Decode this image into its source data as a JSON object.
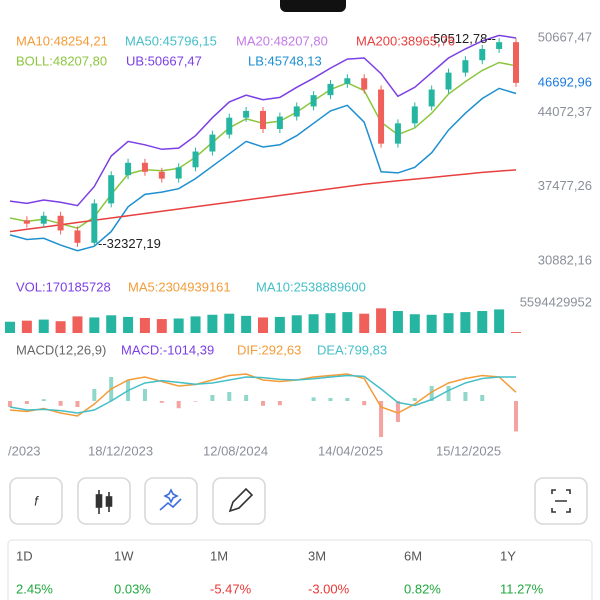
{
  "chart_data": [
    {
      "type": "candlestick-bands",
      "legend": [
        {
          "text": "MA10:48254,21",
          "color": "#f39c38"
        },
        {
          "text": "MA50:45796,15",
          "color": "#44bfc8"
        },
        {
          "text": "MA20:48207,80",
          "color": "#c47ae6"
        },
        {
          "text": "MA200:38965,76",
          "color": "#e8403e"
        },
        {
          "text": "BOLL:48207,80",
          "color": "#8cc63e"
        },
        {
          "text": "UB:50667,47",
          "color": "#7b3fe4"
        },
        {
          "text": "LB:45748,13",
          "color": "#1e8fd0"
        }
      ],
      "annotations": [
        {
          "text": "50512,78--",
          "value": 50512.78
        },
        {
          "text": "--32327,19",
          "value": 32327.19
        }
      ],
      "last_price": {
        "value": 46692.96,
        "label": "46692,96",
        "color": "#1e7be0"
      },
      "ylim": [
        30800,
        51380
      ],
      "yticks": [
        {
          "value": 50667.47,
          "label": "50667,47"
        },
        {
          "value": 44072.37,
          "label": "44072,37"
        },
        {
          "value": 37477.26,
          "label": "37477,26"
        },
        {
          "value": 30882.16,
          "label": "30882,16"
        }
      ],
      "up_color": "#26b5a0",
      "down_color": "#f0605a",
      "series": [
        {
          "color": "#26b5a0",
          "values": [
            34500,
            34200,
            34900,
            33600,
            32500,
            36000,
            38500,
            39600,
            38800,
            38200,
            39200,
            40600,
            42100,
            43600,
            44200,
            42600,
            43700,
            44600,
            45600,
            46600,
            47100,
            46100,
            41300,
            43100,
            44600,
            46100,
            47600,
            48700,
            49700,
            50300,
            46692.96
          ]
        },
        {
          "color": "#7b3fe4",
          "values": [
            36200,
            36000,
            36300,
            36100,
            35800,
            37500,
            40200,
            41500,
            41200,
            40800,
            40900,
            42000,
            43600,
            45000,
            45600,
            45200,
            45400,
            46300,
            47100,
            48000,
            48800,
            48900,
            47500,
            45500,
            46300,
            47600,
            48900,
            49700,
            50400,
            50900,
            50667.47
          ]
        },
        {
          "color": "#8cc63e",
          "values": [
            34700,
            34400,
            34600,
            34200,
            33800,
            34800,
            36800,
            38600,
            39000,
            38900,
            39100,
            40100,
            41400,
            42700,
            43500,
            43100,
            43300,
            44100,
            45100,
            46100,
            46700,
            46000,
            43200,
            42100,
            42700,
            44000,
            45700,
            46800,
            47800,
            48500,
            48207.8
          ]
        },
        {
          "color": "#1e8fd0",
          "values": [
            33200,
            32800,
            32900,
            32300,
            31800,
            32200,
            33500,
            35700,
            36800,
            37000,
            37300,
            38200,
            39300,
            40400,
            41500,
            41000,
            41200,
            42000,
            43100,
            44200,
            44700,
            43200,
            38800,
            38700,
            39200,
            40500,
            42500,
            44000,
            45300,
            46200,
            45748.13
          ]
        },
        {
          "color": "#e8403e",
          "values": [
            33500,
            33700,
            33900,
            34100,
            34300,
            34500,
            34700,
            34900,
            35100,
            35300,
            35500,
            35700,
            35900,
            36100,
            36300,
            36500,
            36700,
            36900,
            37100,
            37300,
            37500,
            37700,
            37850,
            38000,
            38150,
            38300,
            38450,
            38600,
            38750,
            38860,
            38965.76
          ]
        }
      ]
    },
    {
      "type": "volume",
      "legend": [
        {
          "text": "VOL:170185728",
          "color": "#7b3fe4"
        },
        {
          "text": "MA5:2304939161",
          "color": "#f39c38"
        },
        {
          "text": "MA10:2538889600",
          "color": "#44bfc8"
        }
      ],
      "ylim": [
        0,
        5594429952
      ],
      "yticks": [
        5594429952
      ],
      "values": [
        2100000000,
        2300000000,
        2500000000,
        2200000000,
        3100000000,
        2900000000,
        3300000000,
        3000000000,
        2800000000,
        2600000000,
        2700000000,
        3100000000,
        3400000000,
        3600000000,
        3200000000,
        2900000000,
        3000000000,
        3300000000,
        3500000000,
        3700000000,
        3900000000,
        3600000000,
        4600000000,
        4100000000,
        3500000000,
        3400000000,
        3700000000,
        3900000000,
        4100000000,
        4400000000,
        170185728
      ]
    },
    {
      "type": "macd",
      "legend": [
        {
          "text": "MACD(12,26,9)",
          "color": "#666"
        },
        {
          "text": "MACD:-1014,39",
          "color": "#7b3fe4"
        },
        {
          "text": "DIF:292,63",
          "color": "#f39c38"
        },
        {
          "text": "DEA:799,83",
          "color": "#44bfc8"
        }
      ],
      "ylim": [
        -1300,
        1300
      ],
      "up_color": "#8fd6cb",
      "down_color": "#f4a3a0",
      "series": [
        {
          "color": "#f39c38",
          "values": [
            -300,
            -350,
            -250,
            -400,
            -500,
            -100,
            400,
            700,
            800,
            650,
            500,
            550,
            700,
            850,
            900,
            700,
            650,
            700,
            800,
            850,
            900,
            750,
            -200,
            -400,
            -100,
            300,
            600,
            750,
            850,
            800,
            292.63
          ]
        },
        {
          "color": "#44bfc8",
          "values": [
            -200,
            -300,
            -280,
            -320,
            -400,
            -300,
            0,
            350,
            600,
            680,
            620,
            560,
            600,
            700,
            800,
            780,
            720,
            700,
            740,
            800,
            850,
            820,
            400,
            -50,
            -150,
            50,
            350,
            600,
            750,
            800,
            799.83
          ]
        }
      ],
      "histogram": [
        -200,
        -100,
        60,
        -160,
        -200,
        400,
        800,
        700,
        400,
        -60,
        -240,
        -20,
        200,
        300,
        200,
        -160,
        -140,
        0,
        120,
        100,
        100,
        -140,
        -1200,
        -700,
        100,
        500,
        500,
        300,
        200,
        0,
        -1014.39
      ]
    }
  ],
  "x_axis_labels": [
    "/2023",
    "18/12/2023",
    "12/08/2024",
    "14/04/2025",
    "15/12/2025"
  ],
  "returns": {
    "periods": [
      "1D",
      "1W",
      "1M",
      "3M",
      "6M",
      "1Y"
    ],
    "values": [
      2.45,
      0.03,
      -5.47,
      -3.0,
      0.82,
      11.27
    ],
    "value_labels": [
      "2.45%",
      "0.03%",
      "-5.47%",
      "-3.00%",
      "0.82%",
      "11.27%"
    ],
    "up_color": "#1fa83c",
    "down_color": "#e53935"
  }
}
